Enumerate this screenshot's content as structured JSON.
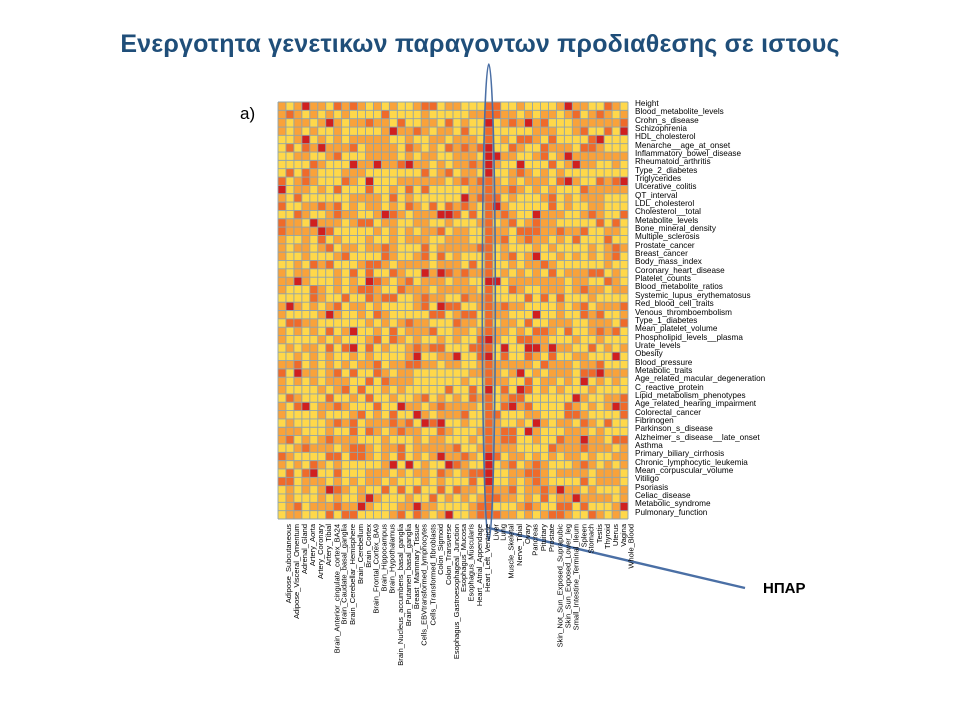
{
  "slide": {
    "title": "Ενεργοτητα γενετικων παραγοντων προδιαθεσης σε ιστους",
    "panel_label": "a)",
    "annotation_label": "ΗΠΑΡ"
  },
  "colors": {
    "title": "#1f4e79",
    "grid": "#8ea3ad",
    "scale": [
      "#ffd84a",
      "#f9a23a",
      "#ef6a2a",
      "#d01f1f"
    ],
    "callout": "#4a6fa5"
  },
  "chart_data": {
    "type": "heatmap",
    "title": "",
    "highlighted_column": "Liver",
    "rows": [
      "Height",
      "Blood_metabolite_levels",
      "Crohn_s_disease",
      "Schizophrenia",
      "HDL_cholesterol",
      "Menarche__age_at_onset",
      "Inflammatory_bowel_disease",
      "Rheumatoid_arthritis",
      "Type_2_diabetes",
      "Triglycerides",
      "Ulcerative_colitis",
      "QT_interval",
      "LDL_cholesterol",
      "Cholesterol__total",
      "Metabolite_levels",
      "Bone_mineral_density",
      "Multiple_sclerosis",
      "Prostate_cancer",
      "Breast_cancer",
      "Body_mass_index",
      "Coronary_heart_disease",
      "Platelet_counts",
      "Blood_metabolite_ratios",
      "Systemic_lupus_erythematosus",
      "Red_blood_cell_traits",
      "Venous_thromboembolism",
      "Type_1_diabetes",
      "Mean_platelet_volume",
      "Phospholipid_levels__plasma",
      "Urate_levels",
      "Obesity",
      "Blood_pressure",
      "Metabolic_traits",
      "Age_related_macular_degeneration",
      "C_reactive_protein",
      "Lipid_metabolism_phenotypes",
      "Age_related_hearing_impairment",
      "Colorectal_cancer",
      "Fibrinogen",
      "Parkinson_s_disease",
      "Alzheimer_s_disease__late_onset",
      "Asthma",
      "Primary_biliary_cirrhosis",
      "Chronic_lymphocytic_leukemia",
      "Mean_corpuscular_volume",
      "Vitiligo",
      "Psoriasis",
      "Celiac_disease",
      "Metabolic_syndrome",
      "Pulmonary_function"
    ],
    "columns": [
      "Adipose_Subcutaneous",
      "Adipose_Visceral_Omentum",
      "Adrenal_Gland",
      "Artery_Aorta",
      "Artery_Coronary",
      "Artery_Tibial",
      "Brain_Anterior_cingulate_cortex_BA24",
      "Brain_Caudate_basal_ganglia",
      "Brain_Cerebellar_Hemisphere",
      "Brain_Cerebellum",
      "Brain_Cortex",
      "Brain_Frontal_Cortex_BA9",
      "Brain_Hippocampus",
      "Brain_Hypothalamus",
      "Brain_Nucleus_accumbens_basal_ganglia",
      "Brain_Putamen_basal_ganglia",
      "Breast_Mammary_Tissue",
      "Cells_EBVtransformed_lymphocytes",
      "Cells_Transformed_fibroblasts",
      "Colon_Sigmoid",
      "Colon_Transverse",
      "Esophagus_Gastroesophageal_Junction",
      "Esophagus_Mucosa",
      "Esophagus_Muscularis",
      "Heart_Atrial_Appendage",
      "Heart_Left_Ventricle",
      "Liver",
      "Lung",
      "Muscle_Skeletal",
      "Nerve_Tibial",
      "Ovary",
      "Pancreas",
      "Pituitary",
      "Prostate",
      "Skin_Not_Sun_Exposed_Suprapubic",
      "Skin_Sun_Exposed_Lower_leg",
      "Small_Intestine_Terminal_Ileum",
      "Spleen",
      "Stomach",
      "Testis",
      "Thyroid",
      "Uterus",
      "Vagina",
      "Whole_Blood"
    ],
    "legend": "none",
    "grid": true
  }
}
